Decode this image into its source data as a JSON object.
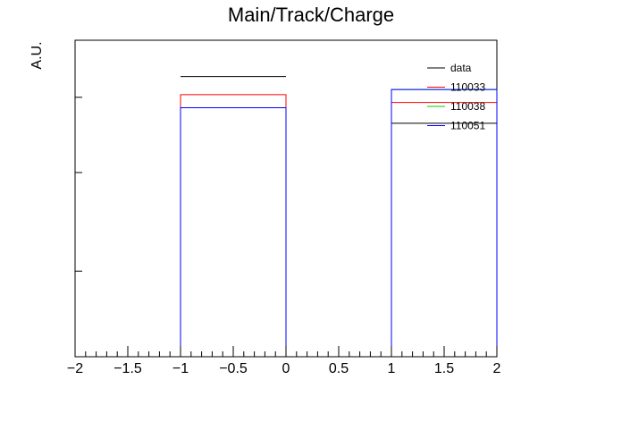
{
  "chart_data": {
    "type": "histogram-step",
    "title": "Main/Track/Charge",
    "ylabel": "A.U.",
    "xlabel": "",
    "xlim": [
      -2,
      2
    ],
    "ylim": [
      0,
      1.22
    ],
    "x_ticks": [
      -2,
      -1.5,
      -1,
      -0.5,
      0,
      0.5,
      1,
      1.5,
      2
    ],
    "x_tick_labels": [
      "−2",
      "−1.5",
      "−1",
      "−0.5",
      "0",
      "0.5",
      "1",
      "1.5",
      "2"
    ],
    "y_ticks": [
      0.33,
      0.71,
      1.0
    ],
    "grid": false,
    "legend_position": "top-right",
    "bins": [
      [
        -1,
        0
      ],
      [
        1,
        2
      ]
    ],
    "series": [
      {
        "name": "data",
        "color": "#000000",
        "values": [
          1.08,
          0.9
        ]
      },
      {
        "name": "110033",
        "color": "#ff0000",
        "values": [
          1.01,
          0.98
        ]
      },
      {
        "name": "110038",
        "color": "#00cc00",
        "values": [
          0.96,
          1.03
        ]
      },
      {
        "name": "110051",
        "color": "#0000ff",
        "values": [
          0.96,
          1.03
        ]
      }
    ]
  }
}
